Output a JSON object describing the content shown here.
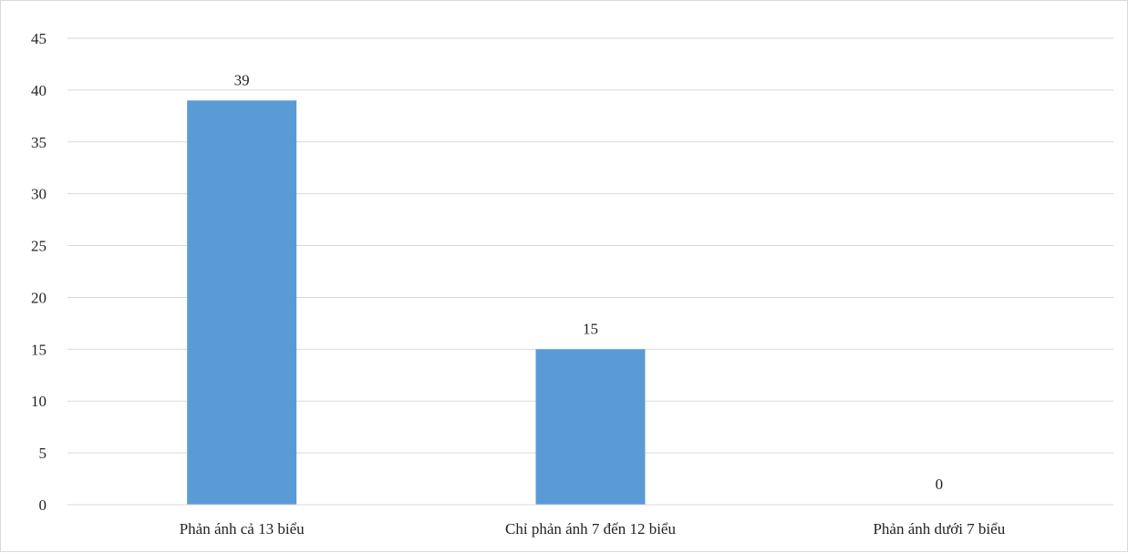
{
  "chart_data": {
    "type": "bar",
    "categories": [
      "Phản ánh cả 13 biểu",
      "Chỉ phản ánh 7 đến 12 biểu",
      "Phản ánh dưới 7 biểu"
    ],
    "series": [
      {
        "values": [
          39,
          15,
          0
        ],
        "color": "#5b9bd5"
      }
    ],
    "data_labels": [
      "39",
      "15",
      "0"
    ],
    "title": "",
    "xlabel": "",
    "ylabel": "",
    "ylim": [
      0,
      45
    ],
    "yticks": [
      0,
      5,
      10,
      15,
      20,
      25,
      30,
      35,
      40,
      45
    ],
    "grid": true,
    "gridline_color": "#d9d9d9",
    "legend": "none"
  }
}
